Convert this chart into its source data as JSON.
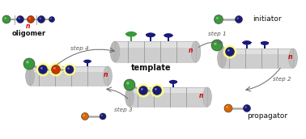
{
  "background_color": "#ffffff",
  "colors": {
    "green": "#3a9a3a",
    "dark_blue": "#1a1a7a",
    "orange_red": "#cc3300",
    "orange": "#dd6600",
    "gray_body": "#cecece",
    "gray_left": "#b8b8b8",
    "gray_right": "#c0c0c0",
    "gray_line": "#aaaaaa",
    "yellow_glow": "#ffff88",
    "red": "#cc0000",
    "arrow_color": "#666666",
    "text_color": "#111111"
  },
  "labels": {
    "oligomer": "oligomer",
    "template": "template",
    "initiator": "initiator",
    "propagator": "propagator",
    "step1": "step 1",
    "step2": "step 2",
    "step3": "step 3",
    "step4": "step 4",
    "n": "n"
  },
  "figsize": [
    3.78,
    1.72
  ],
  "dpi": 100
}
